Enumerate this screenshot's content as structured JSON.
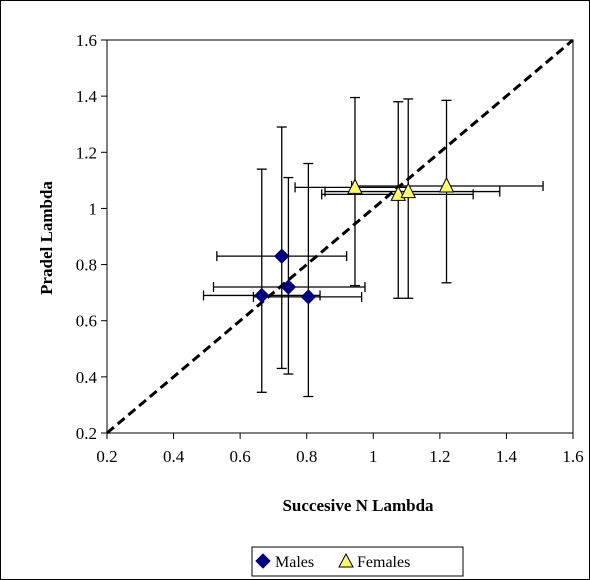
{
  "chart_data": {
    "type": "scatter",
    "xlabel": "Succesive N Lambda",
    "ylabel": "Pradel Lambda",
    "xlim": [
      0.2,
      1.6
    ],
    "ylim": [
      0.2,
      1.6
    ],
    "xticks": [
      "0.2",
      "0.4",
      "0.6",
      "0.8",
      "1",
      "1.2",
      "1.4",
      "1.6"
    ],
    "yticks": [
      "0.2",
      "0.4",
      "0.6",
      "0.8",
      "1",
      "1.2",
      "1.4",
      "1.6"
    ],
    "grid": false,
    "legend_position": "bottom",
    "reference_line": {
      "style": "dashed",
      "from": [
        0.2,
        0.2
      ],
      "to": [
        1.6,
        1.6
      ]
    },
    "series": [
      {
        "name": "Males",
        "marker": "diamond",
        "color": "#000080",
        "points": [
          {
            "x": 0.725,
            "y": 0.83,
            "xlo": 0.53,
            "xhi": 0.92,
            "ylo": 0.43,
            "yhi": 1.29
          },
          {
            "x": 0.745,
            "y": 0.72,
            "xlo": 0.52,
            "xhi": 0.975,
            "ylo": 0.41,
            "yhi": 1.11
          },
          {
            "x": 0.665,
            "y": 0.69,
            "xlo": 0.49,
            "xhi": 0.84,
            "ylo": 0.345,
            "yhi": 1.14
          },
          {
            "x": 0.805,
            "y": 0.685,
            "xlo": 0.64,
            "xhi": 0.965,
            "ylo": 0.33,
            "yhi": 1.16
          }
        ]
      },
      {
        "name": "Females",
        "marker": "triangle",
        "color": "#ffff66",
        "points": [
          {
            "x": 0.945,
            "y": 1.075,
            "xlo": 0.765,
            "xhi": 1.105,
            "ylo": 0.725,
            "yhi": 1.395
          },
          {
            "x": 1.075,
            "y": 1.05,
            "xlo": 0.845,
            "xhi": 1.3,
            "ylo": 0.68,
            "yhi": 1.38
          },
          {
            "x": 1.105,
            "y": 1.06,
            "xlo": 0.855,
            "xhi": 1.38,
            "ylo": 0.68,
            "yhi": 1.39
          },
          {
            "x": 1.22,
            "y": 1.08,
            "xlo": 0.935,
            "xhi": 1.51,
            "ylo": 0.735,
            "yhi": 1.385
          }
        ]
      }
    ]
  }
}
